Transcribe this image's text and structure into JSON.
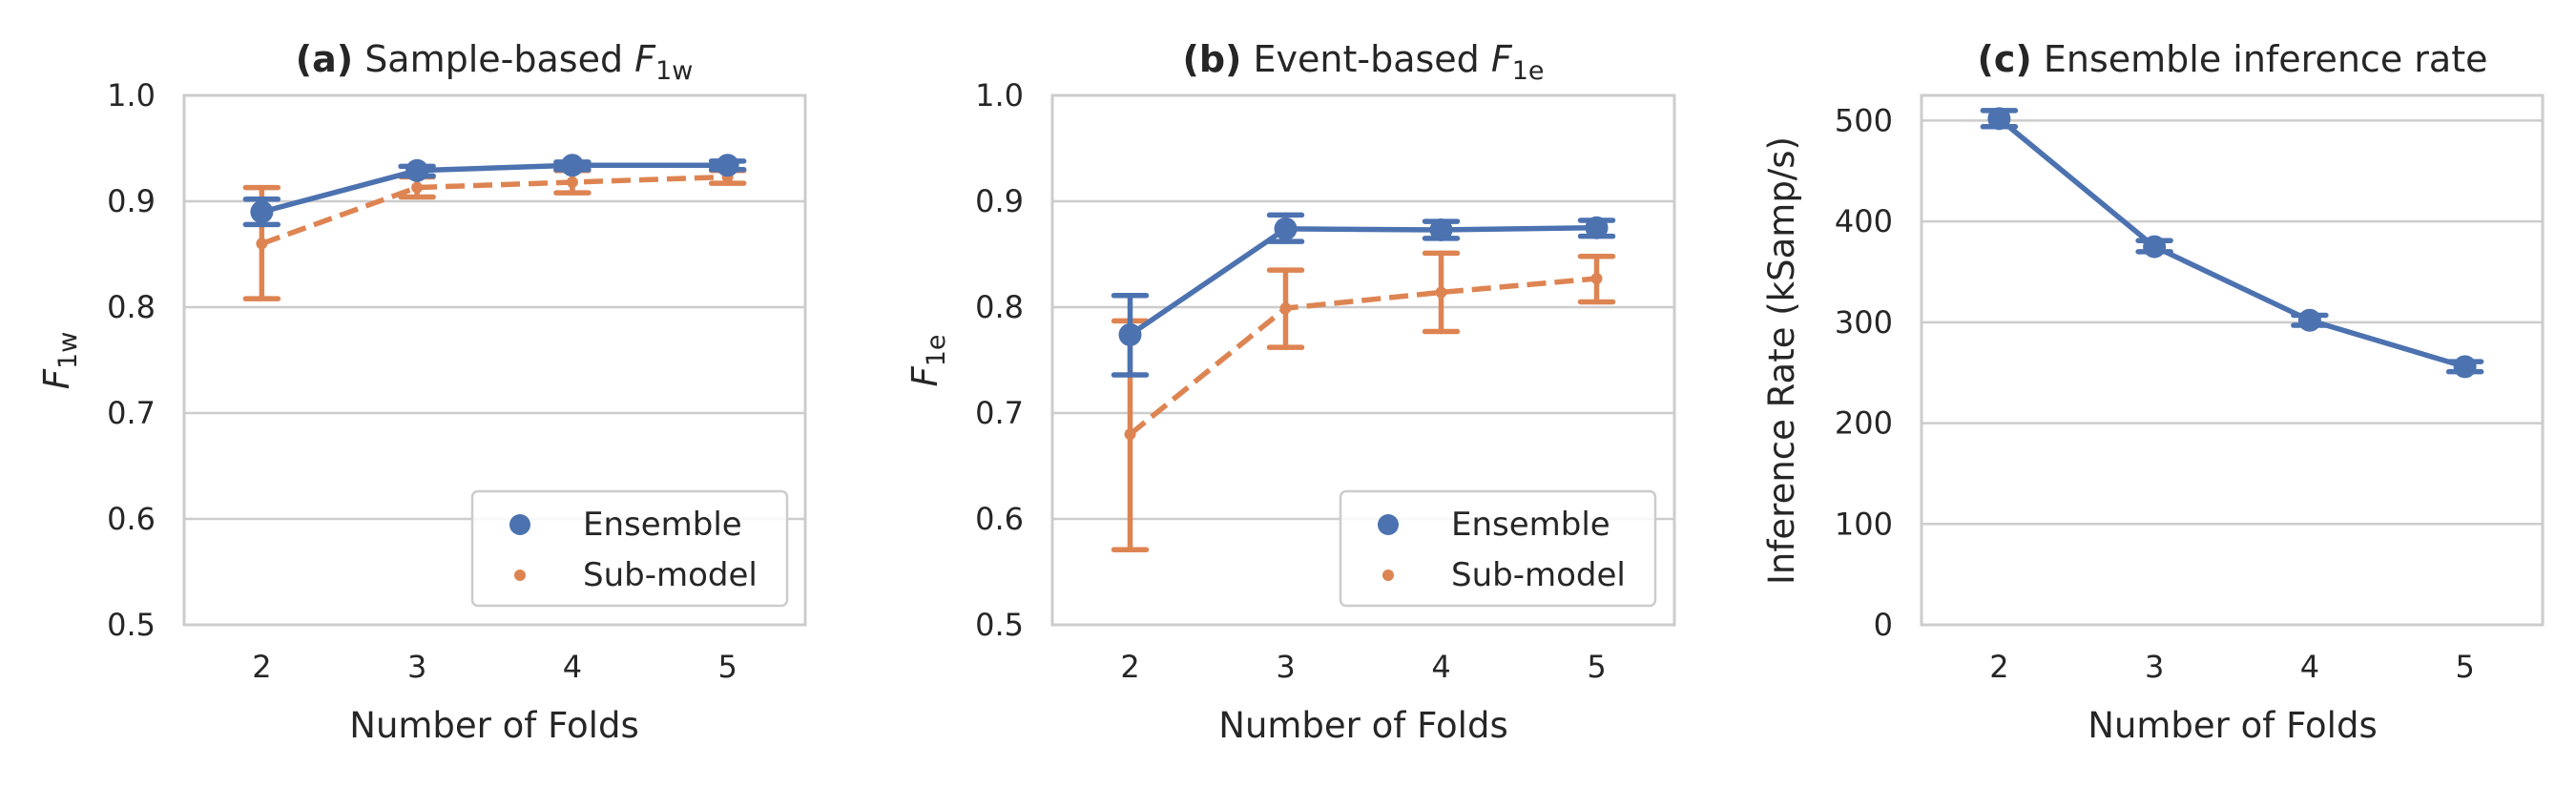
{
  "colors": {
    "ensemble": "#4c72b0",
    "submodel": "#dd8452",
    "grid": "#cccccc",
    "text": "#262626"
  },
  "chart_data": [
    {
      "type": "line",
      "title_bold": "(a)",
      "title_rest": "Sample-based ",
      "title_math": "F",
      "title_sub": "1w",
      "xlabel": "Number of Folds",
      "ylabel_math": "F",
      "ylabel_sub": "1w",
      "categories": [
        "2",
        "3",
        "4",
        "5"
      ],
      "ylim": [
        0.5,
        1.0
      ],
      "yticks": [
        "0.5",
        "0.6",
        "0.7",
        "0.8",
        "0.9",
        "1.0"
      ],
      "grid": true,
      "legend_position": "lower-right",
      "series": [
        {
          "name": "Ensemble",
          "values": [
            0.89,
            0.929,
            0.934,
            0.934
          ],
          "err_low": [
            0.878,
            0.924,
            0.93,
            0.93
          ],
          "err_high": [
            0.902,
            0.933,
            0.937,
            0.938
          ],
          "style": "solid",
          "marker": "large"
        },
        {
          "name": "Sub-model",
          "values": [
            0.86,
            0.913,
            0.918,
            0.923
          ],
          "err_low": [
            0.808,
            0.904,
            0.908,
            0.917
          ],
          "err_high": [
            0.913,
            0.923,
            0.929,
            0.929
          ],
          "style": "dashed",
          "marker": "small"
        }
      ]
    },
    {
      "type": "line",
      "title_bold": "(b)",
      "title_rest": "Event-based ",
      "title_math": "F",
      "title_sub": "1e",
      "xlabel": "Number of Folds",
      "ylabel_math": "F",
      "ylabel_sub": "1e",
      "categories": [
        "2",
        "3",
        "4",
        "5"
      ],
      "ylim": [
        0.5,
        1.0
      ],
      "yticks": [
        "0.5",
        "0.6",
        "0.7",
        "0.8",
        "0.9",
        "1.0"
      ],
      "grid": true,
      "legend_position": "lower-right",
      "series": [
        {
          "name": "Ensemble",
          "values": [
            0.774,
            0.874,
            0.873,
            0.875
          ],
          "err_low": [
            0.736,
            0.862,
            0.865,
            0.867
          ],
          "err_high": [
            0.811,
            0.887,
            0.881,
            0.882
          ],
          "style": "solid",
          "marker": "large"
        },
        {
          "name": "Sub-model",
          "values": [
            0.68,
            0.799,
            0.814,
            0.827
          ],
          "err_low": [
            0.571,
            0.762,
            0.777,
            0.805
          ],
          "err_high": [
            0.787,
            0.835,
            0.851,
            0.848
          ],
          "style": "dashed",
          "marker": "small"
        }
      ]
    },
    {
      "type": "line",
      "title_bold": "(c)",
      "title_rest": "Ensemble inference rate",
      "title_math": "",
      "title_sub": "",
      "xlabel": "Number of Folds",
      "ylabel": "Inference Rate (kSamp/s)",
      "categories": [
        "2",
        "3",
        "4",
        "5"
      ],
      "ylim": [
        0,
        525
      ],
      "yticks": [
        "0",
        "100",
        "200",
        "300",
        "400",
        "500"
      ],
      "grid": true,
      "series": [
        {
          "values": [
            502,
            375,
            302,
            256
          ],
          "err_low": [
            494,
            370,
            297,
            251
          ],
          "err_high": [
            510,
            381,
            307,
            261
          ],
          "style": "solid",
          "marker": "large"
        }
      ]
    }
  ]
}
